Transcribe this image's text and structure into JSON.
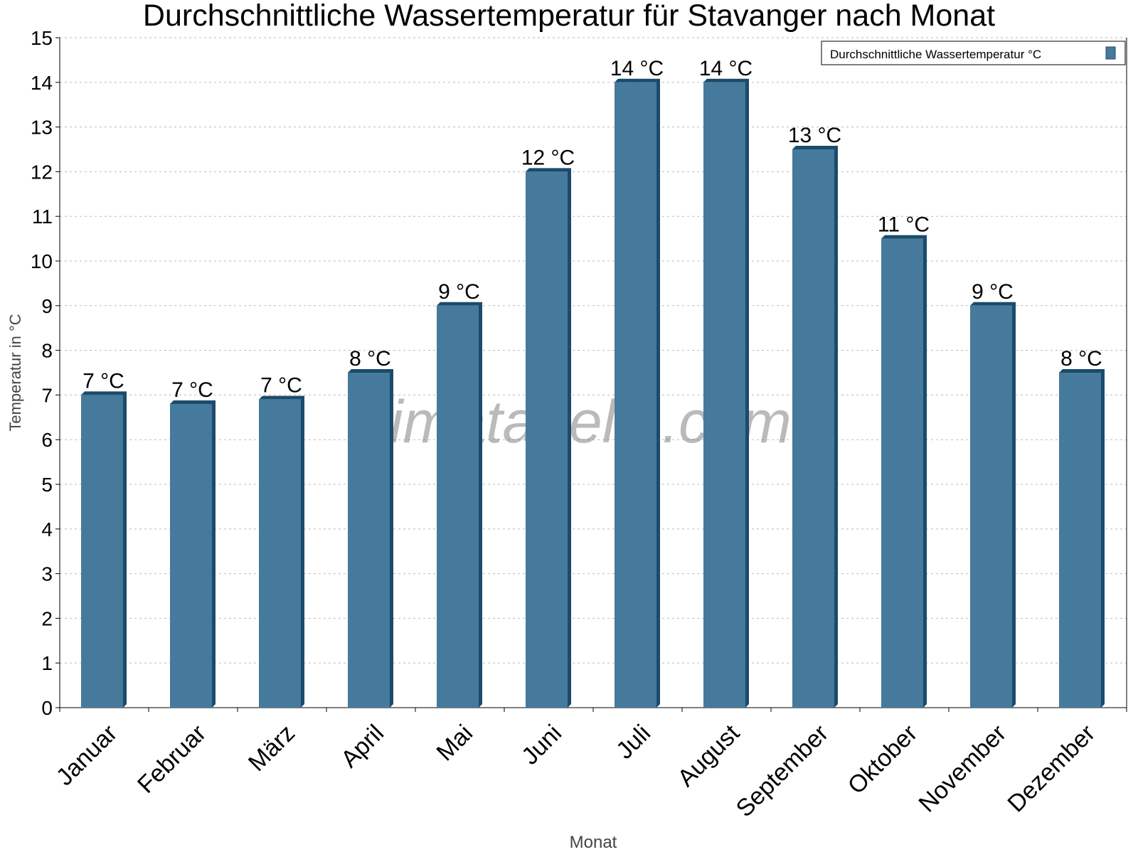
{
  "chart_data": {
    "type": "bar",
    "title": "Durchschnittliche Wassertemperatur für Stavanger nach Monat",
    "xlabel": "Monat",
    "ylabel": "Temperatur in °C",
    "ylim": [
      0,
      15
    ],
    "yticks": [
      0,
      1,
      2,
      3,
      4,
      5,
      6,
      7,
      8,
      9,
      10,
      11,
      12,
      13,
      14,
      15
    ],
    "grid": true,
    "legend_position": "top-right",
    "categories": [
      "Januar",
      "Februar",
      "März",
      "April",
      "Mai",
      "Juni",
      "Juli",
      "August",
      "September",
      "Oktober",
      "November",
      "Dezember"
    ],
    "series": [
      {
        "name": "Durchschnittliche Wassertemperatur °C",
        "values": [
          7.0,
          6.8,
          6.9,
          7.5,
          9.0,
          12.0,
          14.0,
          14.0,
          12.5,
          10.5,
          9.0,
          7.5
        ],
        "data_labels": [
          "7 °C",
          "7 °C",
          "7 °C",
          "8 °C",
          "9 °C",
          "12 °C",
          "14 °C",
          "14 °C",
          "13 °C",
          "11 °C",
          "9 °C",
          "8 °C"
        ],
        "color": "#467a9c",
        "side_color": "#1b4b6b"
      }
    ],
    "watermark": "klimatabelle.com"
  }
}
